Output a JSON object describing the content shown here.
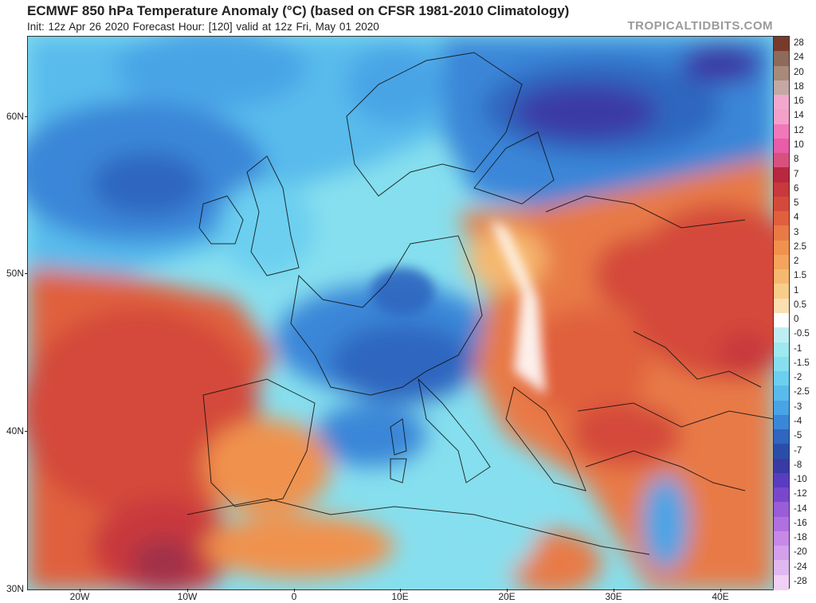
{
  "header": {
    "title": "ECMWF 850 hPa Temperature Anomaly (°C) (based on CFSR 1981-2010 Climatology)",
    "subtitle": "Init: 12z Apr 26 2020   Forecast Hour: [120]   valid at 12z Fri, May 01 2020",
    "brand": "TROPICALTIDBITS.COM"
  },
  "map": {
    "lat_labels": [
      "60N",
      "50N",
      "40N",
      "30N"
    ],
    "lon_labels": [
      "20W",
      "10W",
      "0",
      "10E",
      "20E",
      "30E",
      "40E"
    ]
  },
  "colorbar": {
    "levels": [
      "28",
      "24",
      "20",
      "18",
      "16",
      "14",
      "12",
      "10",
      "8",
      "7",
      "6",
      "5",
      "4",
      "3",
      "2.5",
      "2",
      "1.5",
      "1",
      "0.5",
      "0",
      "-0.5",
      "-1",
      "-1.5",
      "-2",
      "-2.5",
      "-3",
      "-4",
      "-5",
      "-7",
      "-8",
      "-10",
      "-12",
      "-14",
      "-16",
      "-18",
      "-20",
      "-24",
      "-28"
    ],
    "colors": [
      "#7a3a2a",
      "#8e6a5a",
      "#a88a7a",
      "#c4a8a4",
      "#f2a8cc",
      "#f4a0c8",
      "#f078b8",
      "#e85ca8",
      "#d8507e",
      "#b8283e",
      "#c8383c",
      "#d44a3a",
      "#e0603e",
      "#e87a46",
      "#f0924e",
      "#f4a45c",
      "#f6b870",
      "#f8cc8a",
      "#fae0b0",
      "#ffffff",
      "#bfeef2",
      "#9ee8ef",
      "#86dfee",
      "#6ccff0",
      "#58bbec",
      "#48a4e6",
      "#3a86d8",
      "#2e66c0",
      "#2a4ea8",
      "#3a3aa4",
      "#5a3cc0",
      "#7848cc",
      "#9a5cd8",
      "#b070e0",
      "#c888e8",
      "#d4a0ec",
      "#e0b8f0",
      "#f0d0f4"
    ]
  }
}
